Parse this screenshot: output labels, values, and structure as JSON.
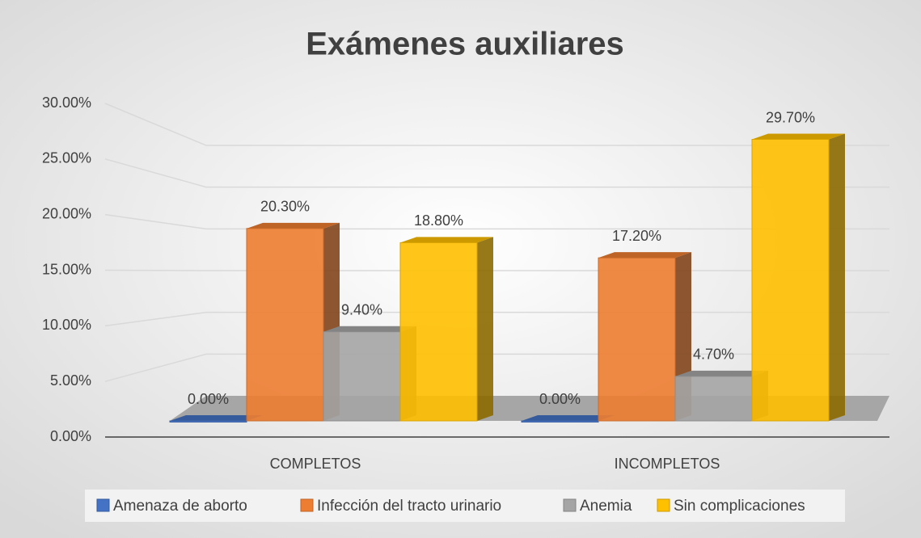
{
  "chart_data": {
    "type": "bar3d",
    "title": "Exámenes auxiliares",
    "categories": [
      "COMPLETOS",
      "INCOMPLETOS"
    ],
    "series": [
      {
        "name": "Amenaza de aborto",
        "color": "#4472c4",
        "values": [
          0,
          0
        ],
        "value_labels": [
          "0.00%",
          "0.00%"
        ]
      },
      {
        "name": "Infección del tracto urinario",
        "color": "#ed7d31",
        "values": [
          20.3,
          17.2
        ],
        "value_labels": [
          "20.30%",
          "17.20%"
        ]
      },
      {
        "name": "Anemia",
        "color": "#a5a5a5",
        "values": [
          9.4,
          4.7
        ],
        "value_labels": [
          "9.40%",
          "4.70%"
        ]
      },
      {
        "name": "Sin complicaciones",
        "color": "#ffc000",
        "values": [
          18.8,
          29.7
        ],
        "value_labels": [
          "18.80%",
          "29.70%"
        ]
      }
    ],
    "ylim": [
      0,
      30
    ],
    "yticks": [
      {
        "value": 0,
        "label": "0.00%"
      },
      {
        "value": 5,
        "label": "5.00%"
      },
      {
        "value": 10,
        "label": "10.00%"
      },
      {
        "value": 15,
        "label": "15.00%"
      },
      {
        "value": 20,
        "label": "20.00%"
      },
      {
        "value": 25,
        "label": "25.00%"
      },
      {
        "value": 30,
        "label": "30.00%"
      }
    ],
    "grid": true,
    "legend": "bottom"
  }
}
